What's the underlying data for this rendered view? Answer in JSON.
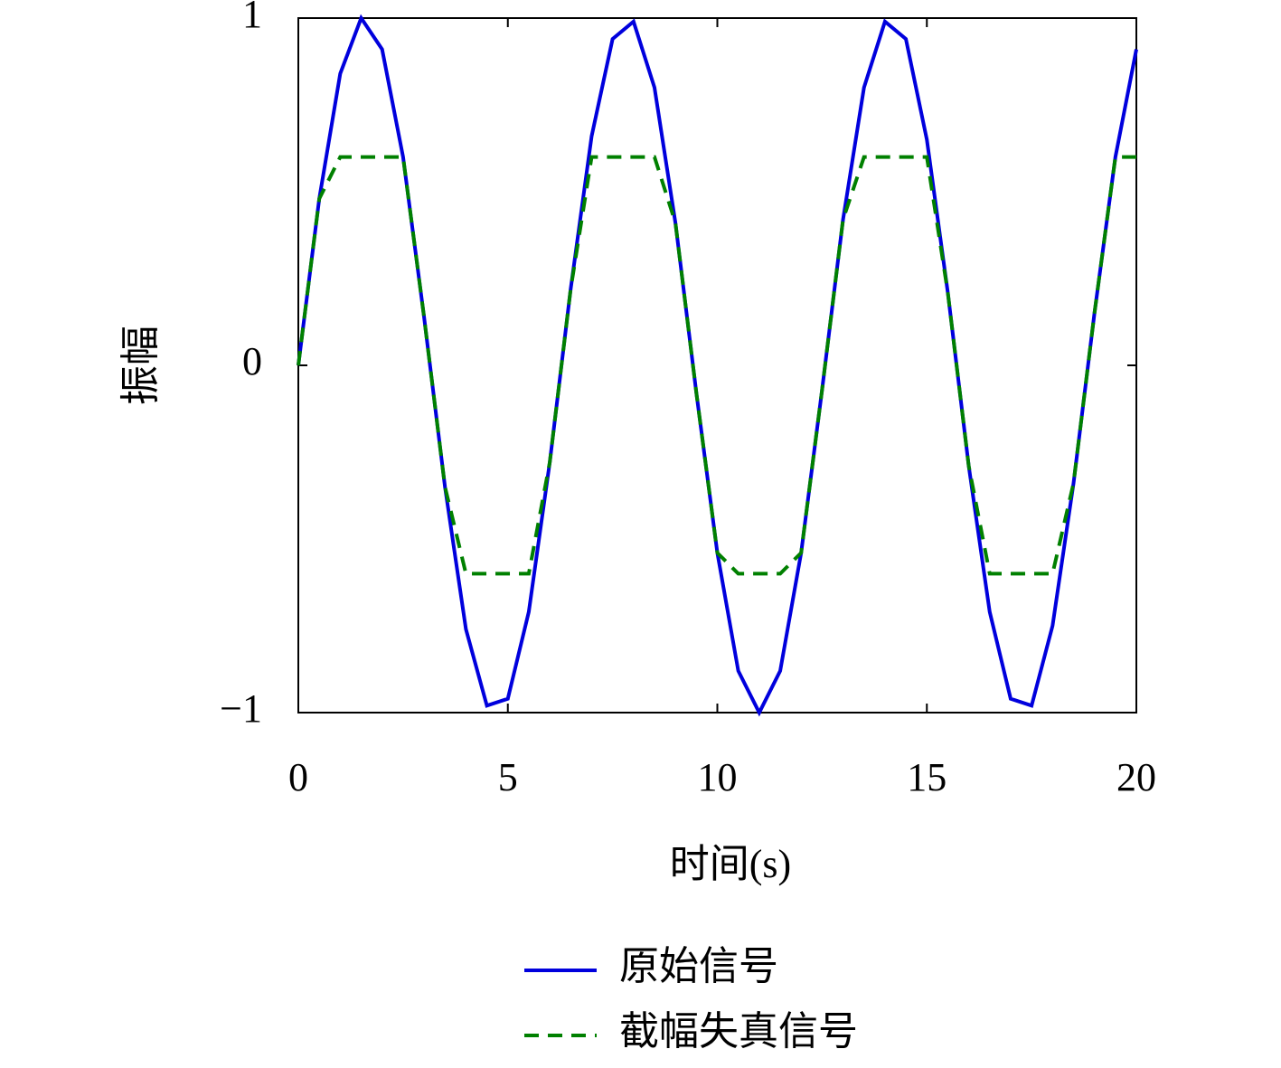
{
  "chart_data": {
    "type": "line",
    "x_label": "时间(s)",
    "y_label": "振幅",
    "x": [
      0,
      0.5,
      1,
      1.5,
      2,
      2.5,
      3,
      3.5,
      4,
      4.5,
      5,
      5.5,
      6,
      6.5,
      7,
      7.5,
      8,
      8.5,
      9,
      9.5,
      10,
      10.5,
      11,
      11.5,
      12,
      12.5,
      13,
      13.5,
      14,
      14.5,
      15,
      15.5,
      16,
      16.5,
      17,
      17.5,
      18,
      18.5,
      19,
      19.5,
      20
    ],
    "series": [
      {
        "name": "原始信号",
        "color": "#0000dd",
        "dash": "solid",
        "values": [
          0,
          0.48,
          0.84,
          1,
          0.91,
          0.6,
          0.14,
          -0.35,
          -0.76,
          -0.98,
          -0.96,
          -0.71,
          -0.28,
          0.22,
          0.66,
          0.94,
          0.99,
          0.8,
          0.41,
          -0.08,
          -0.54,
          -0.88,
          -1,
          -0.88,
          -0.54,
          -0.07,
          0.42,
          0.8,
          0.99,
          0.94,
          0.65,
          0.21,
          -0.29,
          -0.71,
          -0.96,
          -0.98,
          -0.75,
          -0.34,
          0.15,
          0.6,
          0.91
        ]
      },
      {
        "name": "截幅失真信号",
        "color": "#008000",
        "dash": "dashed",
        "values": [
          0,
          0.48,
          0.6,
          0.6,
          0.6,
          0.6,
          0.14,
          -0.35,
          -0.6,
          -0.6,
          -0.6,
          -0.6,
          -0.28,
          0.22,
          0.6,
          0.6,
          0.6,
          0.6,
          0.41,
          -0.08,
          -0.54,
          -0.6,
          -0.6,
          -0.6,
          -0.54,
          -0.07,
          0.42,
          0.6,
          0.6,
          0.6,
          0.6,
          0.21,
          -0.29,
          -0.6,
          -0.6,
          -0.6,
          -0.6,
          -0.34,
          0.15,
          0.6,
          0.6
        ]
      }
    ],
    "xlim": [
      0,
      20
    ],
    "xticks": [
      0,
      5,
      10,
      15,
      20
    ],
    "ylim": [
      -1,
      1
    ],
    "yticks": [
      {
        "value": -1,
        "label": "−1"
      },
      0,
      1
    ],
    "grid": false,
    "legend": "bottom"
  }
}
